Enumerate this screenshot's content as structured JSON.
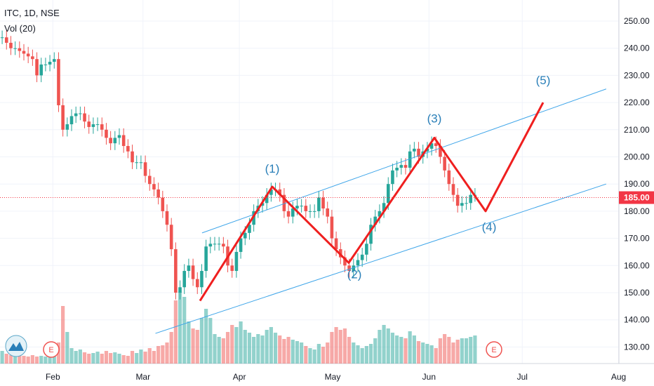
{
  "legend": {
    "symbol_line": "ITC, 1D, NSE",
    "volume_line": "Vol (20)"
  },
  "price_axis": {
    "ticks": [
      "250.00",
      "240.00",
      "230.00",
      "220.00",
      "210.00",
      "200.00",
      "190.00",
      "180.00",
      "170.00",
      "160.00",
      "150.00",
      "140.00",
      "130.00"
    ],
    "current_price_label": "185.00",
    "current_price_color": "#f23645"
  },
  "time_axis": {
    "labels": [
      "Feb",
      "Mar",
      "Apr",
      "May",
      "Jun",
      "Jul",
      "Aug"
    ]
  },
  "colors": {
    "up": "#26a69a",
    "down": "#ef5350",
    "wave": "#ef1f1f",
    "channel": "#3ea5e9",
    "wave_label": "#2a7fb8",
    "grid": "#f0f3fa"
  },
  "events": [
    "E",
    "E"
  ],
  "chart_data": {
    "type": "candlestick",
    "y_range": [
      123,
      255
    ],
    "current_price": 185,
    "months_x_ticks": [
      "Feb",
      "Mar",
      "Apr",
      "May",
      "Jun",
      "Jul",
      "Aug"
    ],
    "candles_close": [
      244,
      242,
      240,
      240,
      239,
      238,
      237,
      236,
      230,
      234,
      234,
      235,
      236,
      219,
      210,
      212,
      215,
      216,
      216,
      213,
      211,
      212,
      212,
      210,
      207,
      205,
      207,
      208,
      204,
      202,
      198,
      198,
      198,
      193,
      190,
      188,
      185,
      180,
      175,
      166,
      150,
      152,
      158,
      160,
      155,
      152,
      158,
      167,
      168,
      168,
      168,
      167,
      160,
      158,
      165,
      170,
      172,
      175,
      180,
      182,
      183,
      186,
      188,
      188,
      186,
      180,
      178,
      181,
      182,
      182,
      180,
      180,
      180,
      185,
      181,
      178,
      170,
      166,
      163,
      160,
      158,
      160,
      162,
      164,
      168,
      175,
      178,
      180,
      183,
      190,
      195,
      196,
      197,
      196,
      202,
      203,
      200,
      202,
      203,
      205,
      204,
      200,
      195,
      190,
      186,
      182,
      183,
      183,
      186,
      186
    ],
    "waves": [
      {
        "label": "(1)",
        "price": 189
      },
      {
        "label": "(2)",
        "price": 161
      },
      {
        "label": "(3)",
        "price": 207
      },
      {
        "label": "(4)",
        "price": 180
      },
      {
        "label": "(5)",
        "price": 220
      }
    ],
    "channel": {
      "upper": [
        {
          "x": "Mar 20",
          "y": 172
        },
        {
          "x": "Jul 28",
          "y": 225
        }
      ],
      "lower": [
        {
          "x": "Mar 5",
          "y": 135
        },
        {
          "x": "Jul 28",
          "y": 190
        }
      ]
    }
  }
}
